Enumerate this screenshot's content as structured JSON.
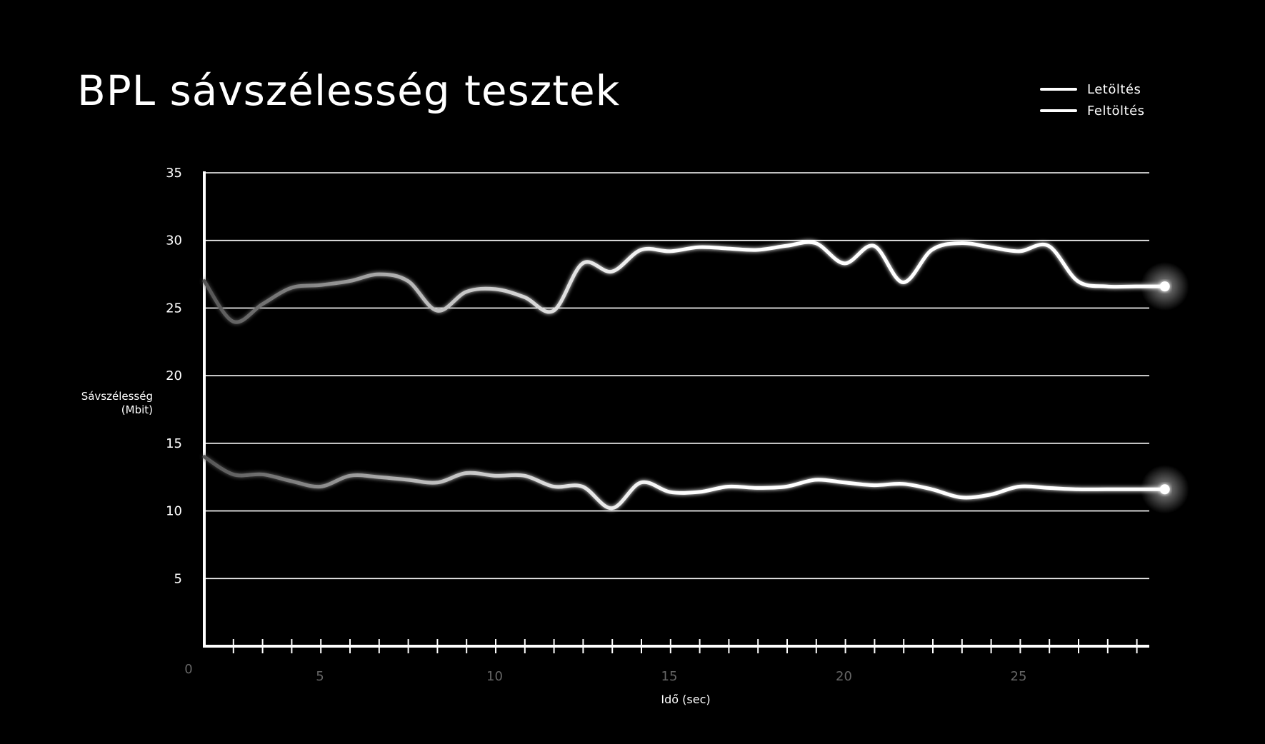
{
  "title": "BPL sávszélesség tesztek",
  "legend": [
    {
      "label": "Letöltés"
    },
    {
      "label": "Feltöltés"
    }
  ],
  "chart_data": {
    "type": "line",
    "title": "BPL sávszélesség tesztek",
    "xlabel": "Idő (sec)",
    "ylabel_line1": "Sávszélesség",
    "ylabel_line2": "(Mbit)",
    "xlim": [
      1,
      29
    ],
    "ylim": [
      0,
      35
    ],
    "yticks": [
      5,
      10,
      15,
      20,
      25,
      30,
      35
    ],
    "xtick_labels": [
      0,
      5,
      10,
      15,
      20,
      25
    ],
    "grid": true,
    "legend_position": "top-right",
    "line_color": "#ffffff",
    "series": [
      {
        "name": "Letöltés",
        "x": [
          1,
          1.83,
          2.67,
          3.5,
          4.33,
          5.17,
          6,
          6.83,
          7.67,
          8.5,
          9.33,
          10.17,
          11,
          11.83,
          12.67,
          13.5,
          14.33,
          15.17,
          16,
          16.83,
          17.67,
          18.5,
          19.33,
          20.17,
          21,
          21.83,
          22.67,
          23.5,
          24.33,
          25.17,
          26,
          26.83,
          27.67,
          28.5
        ],
        "y": [
          27,
          24,
          25.3,
          26.5,
          26.7,
          27,
          27.5,
          27,
          24.8,
          26.2,
          26.4,
          25.8,
          24.8,
          28.3,
          27.7,
          29.3,
          29.2,
          29.5,
          29.4,
          29.3,
          29.6,
          29.8,
          28.3,
          29.6,
          26.9,
          29.3,
          29.8,
          29.5,
          29.2,
          29.6,
          27,
          26.6,
          26.6,
          26.6
        ]
      },
      {
        "name": "Feltöltés",
        "x": [
          1,
          1.83,
          2.67,
          3.5,
          4.33,
          5.17,
          6,
          6.83,
          7.67,
          8.5,
          9.33,
          10.17,
          11,
          11.83,
          12.67,
          13.5,
          14.33,
          15.17,
          16,
          16.83,
          17.67,
          18.5,
          19.33,
          20.17,
          21,
          21.83,
          22.67,
          23.5,
          24.33,
          25.17,
          26,
          26.83,
          27.67,
          28.5
        ],
        "y": [
          14,
          12.7,
          12.7,
          12.2,
          11.8,
          12.6,
          12.5,
          12.3,
          12.1,
          12.8,
          12.6,
          12.6,
          11.8,
          11.8,
          10.2,
          12.1,
          11.4,
          11.4,
          11.8,
          11.7,
          11.8,
          12.3,
          12.1,
          11.9,
          12,
          11.6,
          11,
          11.2,
          11.8,
          11.7,
          11.6,
          11.6,
          11.6,
          11.6
        ]
      }
    ]
  }
}
